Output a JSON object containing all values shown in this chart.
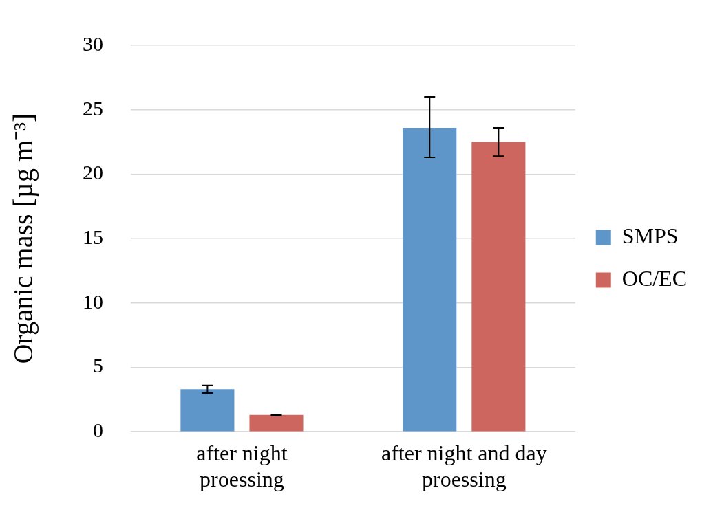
{
  "chart_data": {
    "type": "bar",
    "ylabel": "Organic mass [µg m⁻³]",
    "categories": [
      "after night proessing",
      "after night and day proessing"
    ],
    "series": [
      {
        "name": "SMPS",
        "color": "#5f96c9",
        "values": [
          3.3,
          23.6
        ],
        "errors": [
          0.3,
          [
            21.3,
            26.0
          ]
        ]
      },
      {
        "name": "OC/EC",
        "color": "#cd665e",
        "values": [
          1.3,
          22.5
        ],
        "errors": [
          0.05,
          [
            21.4,
            23.6
          ]
        ]
      }
    ],
    "ylim": [
      0,
      30
    ],
    "yticks": [
      0,
      5,
      10,
      15,
      20,
      25,
      30
    ],
    "grid": "y",
    "legend": "right"
  }
}
